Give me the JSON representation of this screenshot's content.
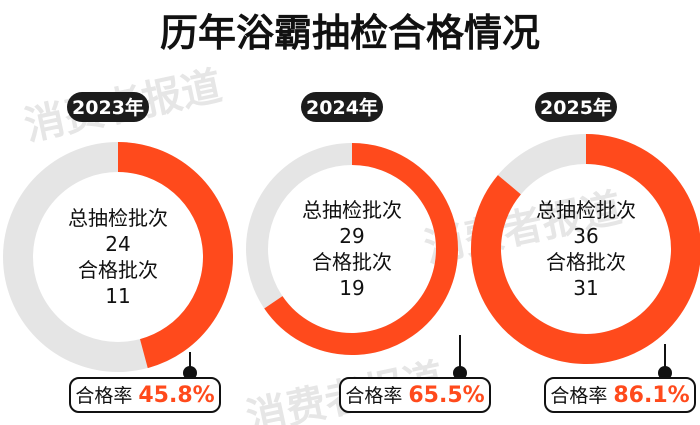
{
  "chart_data": {
    "type": "pie",
    "title": "历年浴霸抽检合格情况",
    "watermark": "消费者报道",
    "labels": {
      "total": "总抽检批次",
      "passed": "合格批次",
      "rate": "合格率"
    },
    "colors": {
      "passed": "#ff4a1c",
      "remaining": "#e5e5e5",
      "pill": "#1c1c1c",
      "rate_value": "#ff4a1c"
    },
    "years": [
      {
        "year": "2023年",
        "total": 24,
        "passed": 11,
        "rate": "45.8%"
      },
      {
        "year": "2024年",
        "total": 29,
        "passed": 19,
        "rate": "65.5%"
      },
      {
        "year": "2025年",
        "total": 36,
        "passed": 31,
        "rate": "86.1%"
      }
    ]
  }
}
